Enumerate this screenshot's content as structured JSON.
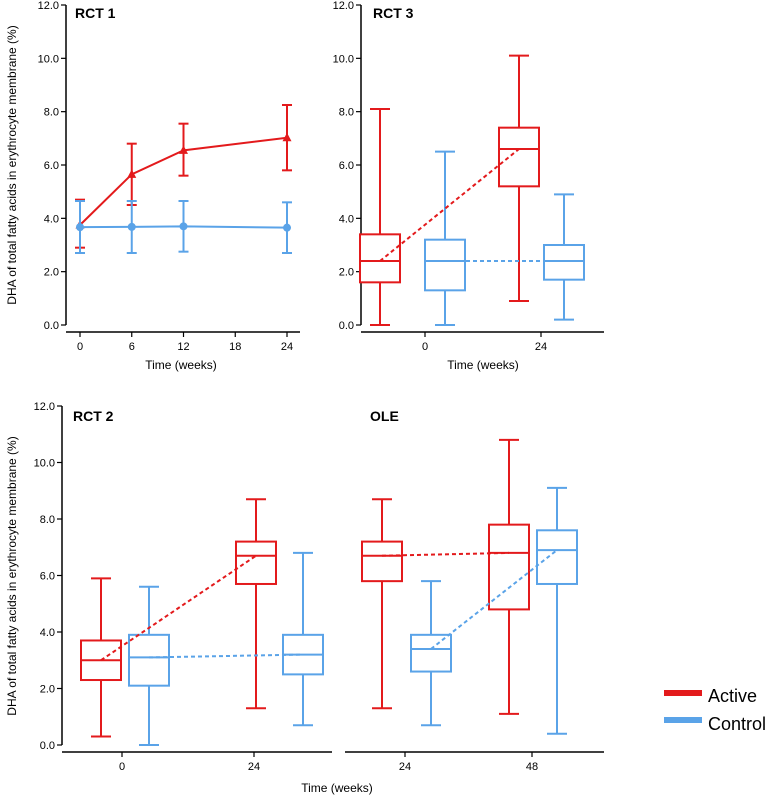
{
  "colors": {
    "active": "#e31a1c",
    "control": "#5aa3e8",
    "axis": "#000000"
  },
  "legend": {
    "active": "Active",
    "control": "Control"
  },
  "chart_data": [
    {
      "id": "rct1",
      "type": "line",
      "title": "RCT 1",
      "xlabel": "Time (weeks)",
      "ylabel": "DHA of total fatty acids in erythrocyte membrane (%)",
      "x": [
        0,
        6,
        12,
        24
      ],
      "xticks": [
        "0",
        "6",
        "12",
        "18",
        "24"
      ],
      "yticks": [
        "0.0",
        "2.0",
        "4.0",
        "6.0",
        "8.0",
        "10.0",
        "12.0"
      ],
      "ylim": [
        0,
        12
      ],
      "series": [
        {
          "name": "Active",
          "marker": "triangle",
          "mean": [
            3.75,
            5.65,
            6.55,
            7.02
          ],
          "lower": [
            2.9,
            4.5,
            5.6,
            5.8
          ],
          "upper": [
            4.7,
            6.8,
            7.55,
            8.25
          ]
        },
        {
          "name": "Control",
          "marker": "circle",
          "mean": [
            3.67,
            3.68,
            3.7,
            3.65
          ],
          "lower": [
            2.7,
            2.7,
            2.75,
            2.7
          ],
          "upper": [
            4.65,
            4.65,
            4.65,
            4.6
          ]
        }
      ]
    },
    {
      "id": "rct3",
      "type": "box",
      "title": "RCT 3",
      "xlabel": "Time (weeks)",
      "xticks": [
        "0",
        "24"
      ],
      "yticks": [
        "0.0",
        "2.0",
        "4.0",
        "6.0",
        "8.0",
        "10.0",
        "12.0"
      ],
      "ylim": [
        0,
        12
      ],
      "boxes": [
        {
          "series": "Active",
          "time": "0",
          "min": 0.0,
          "q1": 1.6,
          "median": 2.4,
          "q3": 3.4,
          "max": 8.1
        },
        {
          "series": "Control",
          "time": "0",
          "min": 0.0,
          "q1": 1.3,
          "median": 2.4,
          "q3": 3.2,
          "max": 6.5
        },
        {
          "series": "Active",
          "time": "24",
          "min": 0.9,
          "q1": 5.2,
          "median": 6.6,
          "q3": 7.4,
          "max": 10.1
        },
        {
          "series": "Control",
          "time": "24",
          "min": 0.2,
          "q1": 1.7,
          "median": 2.4,
          "q3": 3.0,
          "max": 4.9
        }
      ]
    },
    {
      "id": "rct2",
      "type": "box",
      "title": "RCT 2",
      "xlabel": "Time (weeks)",
      "ylabel": "DHA of total fatty acids in erythrocyte membrane (%)",
      "xticks": [
        "0",
        "24"
      ],
      "yticks": [
        "0.0",
        "2.0",
        "4.0",
        "6.0",
        "8.0",
        "10.0",
        "12.0"
      ],
      "ylim": [
        0,
        12
      ],
      "boxes": [
        {
          "series": "Active",
          "time": "0",
          "min": 0.3,
          "q1": 2.3,
          "median": 3.0,
          "q3": 3.7,
          "max": 5.9
        },
        {
          "series": "Control",
          "time": "0",
          "min": 0.0,
          "q1": 2.1,
          "median": 3.1,
          "q3": 3.9,
          "max": 5.6
        },
        {
          "series": "Active",
          "time": "24",
          "min": 1.3,
          "q1": 5.7,
          "median": 6.7,
          "q3": 7.2,
          "max": 8.7
        },
        {
          "series": "Control",
          "time": "24",
          "min": 0.7,
          "q1": 2.5,
          "median": 3.2,
          "q3": 3.9,
          "max": 6.8
        }
      ]
    },
    {
      "id": "ole",
      "type": "box",
      "title": "OLE",
      "xticks": [
        "24",
        "48"
      ],
      "ylim": [
        0,
        12
      ],
      "boxes": [
        {
          "series": "Active",
          "time": "24",
          "min": 1.3,
          "q1": 5.8,
          "median": 6.7,
          "q3": 7.2,
          "max": 8.7
        },
        {
          "series": "Control",
          "time": "24",
          "min": 0.7,
          "q1": 2.6,
          "median": 3.4,
          "q3": 3.9,
          "max": 5.8
        },
        {
          "series": "Active",
          "time": "48",
          "min": 1.1,
          "q1": 4.8,
          "median": 6.8,
          "q3": 7.8,
          "max": 10.8
        },
        {
          "series": "Control",
          "time": "48",
          "min": 0.4,
          "q1": 5.7,
          "median": 6.9,
          "q3": 7.6,
          "max": 9.1
        }
      ]
    }
  ]
}
